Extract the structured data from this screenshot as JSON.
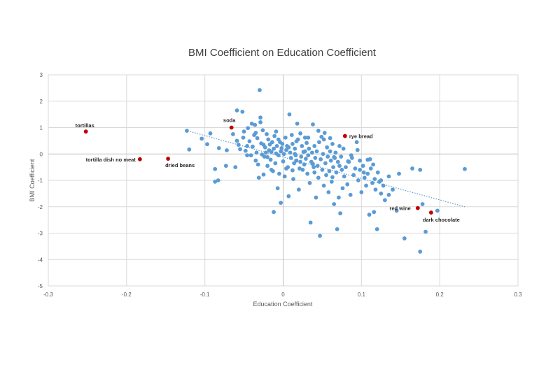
{
  "chart_data": {
    "type": "scatter",
    "title": "BMI Coefficient on Education Coefficient",
    "xlabel": "Education Coefficient",
    "ylabel": "BMI Coefficient",
    "xlim": [
      -0.3,
      0.3
    ],
    "ylim": [
      -5,
      3
    ],
    "x_ticks": [
      -0.3,
      -0.2,
      -0.1,
      0,
      0.1,
      0.2,
      0.3
    ],
    "x_tick_labels": [
      "-0.3",
      "-0.2",
      "-0.1",
      "0",
      "0.1",
      "0.2",
      "0.3"
    ],
    "y_ticks": [
      -5,
      -4,
      -3,
      -2,
      -1,
      0,
      1,
      2,
      3
    ],
    "y_tick_labels": [
      "-5",
      "-4",
      "-3",
      "-2",
      "-1",
      "0",
      "1",
      "2",
      "3"
    ],
    "grid": true,
    "colors": {
      "points": "#5b9bd5",
      "highlight": "#c00000",
      "trendline": "#5b9bd5",
      "grid": "#d9d9d9",
      "axis_text": "#595959",
      "title": "#404040"
    },
    "trendline": {
      "style": "dotted",
      "x": [
        -0.125,
        0.232
      ],
      "y": [
        0.9,
        -2.0
      ]
    },
    "highlighted_points": [
      {
        "label": "tortillas",
        "x": -0.252,
        "y": 0.85
      },
      {
        "label": "tortilla dish no meat",
        "x": -0.183,
        "y": -0.2
      },
      {
        "label": "dried beans",
        "x": -0.147,
        "y": -0.18
      },
      {
        "label": "soda",
        "x": -0.066,
        "y": 1.0
      },
      {
        "label": "rye bread",
        "x": 0.079,
        "y": 0.68
      },
      {
        "label": "red wine",
        "x": 0.172,
        "y": -2.05
      },
      {
        "label": "dark chocolate",
        "x": 0.189,
        "y": -2.22
      }
    ],
    "series": [
      {
        "points": [
          [
            -0.123,
            0.88
          ],
          [
            -0.12,
            0.17
          ],
          [
            -0.104,
            0.58
          ],
          [
            -0.097,
            0.37
          ],
          [
            -0.093,
            0.78
          ],
          [
            -0.087,
            -0.57
          ],
          [
            -0.087,
            -1.05
          ],
          [
            -0.083,
            -1.0
          ],
          [
            -0.082,
            0.22
          ],
          [
            -0.073,
            -0.45
          ],
          [
            -0.072,
            0.14
          ],
          [
            -0.064,
            0.75
          ],
          [
            -0.061,
            -0.5
          ],
          [
            -0.059,
            1.65
          ],
          [
            -0.059,
            0.5
          ],
          [
            -0.057,
            0.35
          ],
          [
            -0.052,
            1.6
          ],
          [
            -0.051,
            0.62
          ],
          [
            -0.05,
            0.85
          ],
          [
            -0.048,
            0.12
          ],
          [
            -0.046,
            -0.05
          ],
          [
            -0.045,
            0.98
          ],
          [
            -0.043,
            0.48
          ],
          [
            -0.041,
            -0.05
          ],
          [
            -0.04,
            1.15
          ],
          [
            -0.039,
            0.28
          ],
          [
            -0.037,
            0.72
          ],
          [
            -0.036,
            1.1
          ],
          [
            -0.035,
            -0.25
          ],
          [
            -0.034,
            0.05
          ],
          [
            -0.033,
            0.6
          ],
          [
            -0.032,
            -0.4
          ],
          [
            -0.031,
            -0.9
          ],
          [
            -0.03,
            2.42
          ],
          [
            -0.029,
            1.2
          ],
          [
            -0.029,
            1.38
          ],
          [
            -0.028,
            0.4
          ],
          [
            -0.027,
            -0.02
          ],
          [
            -0.026,
            0.9
          ],
          [
            -0.025,
            -0.78
          ],
          [
            -0.024,
            -0.1
          ],
          [
            -0.023,
            0.25
          ],
          [
            -0.022,
            0.05
          ],
          [
            -0.021,
            0.75
          ],
          [
            -0.02,
            -0.45
          ],
          [
            -0.019,
            0.55
          ],
          [
            -0.018,
            0.14
          ],
          [
            -0.017,
            0.36
          ],
          [
            -0.016,
            -0.22
          ],
          [
            -0.015,
            0.08
          ],
          [
            -0.014,
            0.45
          ],
          [
            -0.013,
            -0.65
          ],
          [
            -0.012,
            -2.2
          ],
          [
            -0.012,
            0.2
          ],
          [
            -0.011,
            0.68
          ],
          [
            -0.01,
            -0.35
          ],
          [
            -0.009,
            0.02
          ],
          [
            -0.009,
            0.85
          ],
          [
            -0.008,
            0.3
          ],
          [
            -0.007,
            -1.3
          ],
          [
            -0.006,
            -0.05
          ],
          [
            -0.005,
            -0.75
          ],
          [
            -0.004,
            0.45
          ],
          [
            -0.003,
            -1.85
          ],
          [
            -0.003,
            0.1
          ],
          [
            -0.002,
            0.22
          ],
          [
            -0.001,
            0.38
          ],
          [
            0.0,
            -0.28
          ],
          [
            0.001,
            0.0
          ],
          [
            0.002,
            -0.85
          ],
          [
            0.003,
            0.62
          ],
          [
            0.004,
            0.15
          ],
          [
            0.005,
            0.3
          ],
          [
            0.006,
            -0.5
          ],
          [
            0.007,
            -1.6
          ],
          [
            0.008,
            1.5
          ],
          [
            0.009,
            0.05
          ],
          [
            0.01,
            -0.15
          ],
          [
            0.011,
            0.72
          ],
          [
            0.012,
            0.38
          ],
          [
            0.013,
            -0.95
          ],
          [
            0.014,
            -0.35
          ],
          [
            0.015,
            0.2
          ],
          [
            0.016,
            -0.05
          ],
          [
            0.017,
            -0.25
          ],
          [
            0.018,
            1.15
          ],
          [
            0.019,
            0.55
          ],
          [
            0.02,
            -1.35
          ],
          [
            0.021,
            -0.55
          ],
          [
            0.022,
            0.78
          ],
          [
            0.023,
            -0.1
          ],
          [
            0.024,
            0.3
          ],
          [
            0.025,
            -0.6
          ],
          [
            0.026,
            0.08
          ],
          [
            0.027,
            -0.4
          ],
          [
            0.028,
            0.62
          ],
          [
            0.029,
            -0.18
          ],
          [
            0.03,
            0.42
          ],
          [
            0.031,
            -0.75
          ],
          [
            0.032,
            -0.05
          ],
          [
            0.033,
            0.2
          ],
          [
            0.034,
            -1.1
          ],
          [
            0.035,
            -2.6
          ],
          [
            0.036,
            -0.3
          ],
          [
            0.037,
            0.05
          ],
          [
            0.038,
            1.12
          ],
          [
            0.039,
            -0.5
          ],
          [
            0.04,
            0.3
          ],
          [
            0.041,
            -0.15
          ],
          [
            0.042,
            -1.65
          ],
          [
            0.043,
            0.1
          ],
          [
            0.044,
            -0.45
          ],
          [
            0.045,
            -0.9
          ],
          [
            0.046,
            0.45
          ],
          [
            0.047,
            -3.1
          ],
          [
            0.048,
            -0.2
          ],
          [
            0.049,
            0.65
          ],
          [
            0.05,
            -0.6
          ],
          [
            0.051,
            0.0
          ],
          [
            0.052,
            -1.2
          ],
          [
            0.053,
            0.8
          ],
          [
            0.054,
            -0.35
          ],
          [
            0.055,
            -0.8
          ],
          [
            0.056,
            0.25
          ],
          [
            0.057,
            -0.1
          ],
          [
            0.058,
            -1.45
          ],
          [
            0.059,
            -0.65
          ],
          [
            0.06,
            0.1
          ],
          [
            0.061,
            -0.25
          ],
          [
            0.062,
            -1.05
          ],
          [
            0.063,
            0.38
          ],
          [
            0.064,
            -0.5
          ],
          [
            0.065,
            -1.9
          ],
          [
            0.066,
            -0.15
          ],
          [
            0.067,
            0.05
          ],
          [
            0.068,
            -0.7
          ],
          [
            0.069,
            -2.85
          ],
          [
            0.07,
            -0.3
          ],
          [
            0.071,
            -1.65
          ],
          [
            0.072,
            -0.45
          ],
          [
            0.073,
            -2.25
          ],
          [
            0.074,
            -0.1
          ],
          [
            0.075,
            -0.6
          ],
          [
            0.076,
            -1.3
          ],
          [
            0.077,
            0.2
          ],
          [
            0.078,
            -0.85
          ],
          [
            0.08,
            -0.5
          ],
          [
            0.082,
            -1.15
          ],
          [
            0.084,
            -0.3
          ],
          [
            0.086,
            -1.55
          ],
          [
            0.088,
            -0.15
          ],
          [
            0.09,
            -0.8
          ],
          [
            0.092,
            -0.55
          ],
          [
            0.094,
            0.45
          ],
          [
            0.096,
            -1.0
          ],
          [
            0.098,
            -0.25
          ],
          [
            0.1,
            -1.45
          ],
          [
            0.102,
            -0.45
          ],
          [
            0.104,
            -0.9
          ],
          [
            0.106,
            -1.2
          ],
          [
            0.108,
            -0.75
          ],
          [
            0.11,
            -2.3
          ],
          [
            0.111,
            -0.2
          ],
          [
            0.112,
            -0.55
          ],
          [
            0.114,
            -1.1
          ],
          [
            0.116,
            -2.2
          ],
          [
            0.117,
            -0.95
          ],
          [
            0.118,
            -1.35
          ],
          [
            0.12,
            -2.85
          ],
          [
            0.121,
            -0.7
          ],
          [
            0.123,
            -1.05
          ],
          [
            0.125,
            -1.5
          ],
          [
            0.128,
            -1.2
          ],
          [
            0.13,
            -1.75
          ],
          [
            0.135,
            -0.85
          ],
          [
            0.14,
            -1.35
          ],
          [
            0.145,
            -2.15
          ],
          [
            0.148,
            -0.75
          ],
          [
            0.155,
            -3.2
          ],
          [
            0.165,
            -0.55
          ],
          [
            0.175,
            -0.6
          ],
          [
            0.175,
            -3.7
          ],
          [
            0.178,
            -1.9
          ],
          [
            0.182,
            -2.95
          ],
          [
            0.197,
            -2.15
          ],
          [
            0.232,
            -0.57
          ],
          [
            0.095,
            0.15
          ],
          [
            0.115,
            -0.4
          ],
          [
            0.103,
            -0.7
          ],
          [
            0.087,
            -0.05
          ],
          [
            0.063,
            -0.88
          ],
          [
            0.052,
            0.55
          ],
          [
            0.045,
            0.88
          ],
          [
            0.038,
            -0.38
          ],
          [
            0.028,
            0.1
          ],
          [
            0.022,
            -0.3
          ],
          [
            0.017,
            0.48
          ],
          [
            0.012,
            -0.62
          ],
          [
            0.007,
            0.25
          ],
          [
            -0.006,
            0.55
          ],
          [
            -0.015,
            -0.6
          ],
          [
            -0.025,
            0.35
          ],
          [
            -0.035,
            0.8
          ],
          [
            -0.046,
            0.3
          ],
          [
            -0.055,
            0.18
          ],
          [
            0.06,
            0.6
          ],
          [
            0.072,
            0.3
          ],
          [
            0.083,
            -0.28
          ],
          [
            0.098,
            -0.6
          ],
          [
            0.108,
            -0.22
          ],
          [
            0.125,
            -1.0
          ],
          [
            0.135,
            -1.55
          ],
          [
            0.065,
            -0.12
          ],
          [
            0.032,
            0.62
          ],
          [
            0.004,
            -0.55
          ],
          [
            -0.02,
            -0.12
          ],
          [
            0.015,
            0.0
          ],
          [
            0.04,
            -0.7
          ]
        ]
      }
    ]
  }
}
